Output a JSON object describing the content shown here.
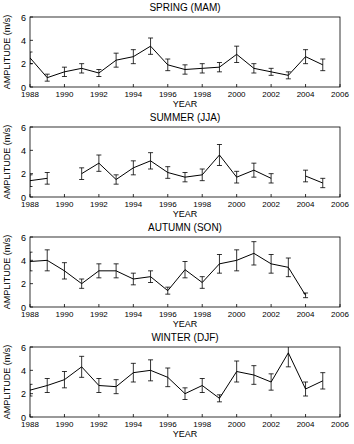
{
  "chart_data": [
    {
      "type": "line",
      "title": "SPRING (MAM)",
      "x_label": "YEAR",
      "y_label": "AMPLITUDE (m/s)",
      "color": "#000000",
      "marker": "none",
      "x": [
        1988,
        1989,
        1990,
        1991,
        1992,
        1993,
        1994,
        1995,
        1996,
        1997,
        1998,
        1999,
        2000,
        2001,
        2002,
        2003,
        2004,
        2005
      ],
      "values": [
        2.5,
        0.8,
        1.3,
        1.6,
        1.2,
        2.3,
        2.6,
        3.5,
        1.9,
        1.5,
        1.6,
        1.7,
        2.8,
        1.6,
        1.3,
        1.0,
        2.6,
        1.9
      ],
      "errors": [
        0.5,
        0.3,
        0.4,
        0.4,
        0.3,
        0.6,
        0.6,
        0.7,
        0.5,
        0.4,
        0.4,
        0.4,
        0.7,
        0.4,
        0.3,
        0.3,
        0.6,
        0.5
      ],
      "xlim": [
        1988,
        2006
      ],
      "xticks": [
        1988,
        1990,
        1992,
        1994,
        1996,
        1998,
        2000,
        2002,
        2004,
        2006
      ],
      "ylim": [
        0,
        6
      ],
      "yticks": [
        0,
        2,
        4,
        6
      ]
    },
    {
      "type": "line",
      "title": "SUMMER (JJA)",
      "x_label": "YEAR",
      "y_label": "AMPLITUDE (m/s)",
      "color": "#000000",
      "marker": "none",
      "x": [
        1988,
        1989,
        1990,
        1991,
        1992,
        1993,
        1994,
        1995,
        1996,
        1997,
        1998,
        1999,
        2000,
        2001,
        2002,
        2003,
        2004,
        2005
      ],
      "values": [
        1.4,
        1.6,
        null,
        2.0,
        2.9,
        1.5,
        2.5,
        3.1,
        2.1,
        1.7,
        1.9,
        3.6,
        1.7,
        2.3,
        1.6,
        null,
        1.8,
        1.2
      ],
      "errors": [
        0.5,
        0.5,
        null,
        0.5,
        0.7,
        0.4,
        0.6,
        0.7,
        0.5,
        0.4,
        0.5,
        0.9,
        0.5,
        0.6,
        0.4,
        null,
        0.5,
        0.4
      ],
      "xlim": [
        1988,
        2006
      ],
      "xticks": [
        1988,
        1990,
        1992,
        1994,
        1996,
        1998,
        2000,
        2002,
        2004,
        2006
      ],
      "ylim": [
        0,
        6
      ],
      "yticks": [
        0,
        2,
        4,
        6
      ]
    },
    {
      "type": "line",
      "title": "AUTUMN (SON)",
      "x_label": "YEAR",
      "y_label": "AMPLITUDE (m/s)",
      "color": "#000000",
      "marker": "none",
      "x": [
        1988,
        1989,
        1990,
        1991,
        1992,
        1993,
        1994,
        1995,
        1996,
        1997,
        1998,
        1999,
        2000,
        2001,
        2002,
        2003,
        2004
      ],
      "values": [
        3.9,
        4.0,
        3.1,
        2.0,
        3.1,
        3.1,
        2.4,
        2.6,
        1.4,
        3.2,
        2.1,
        3.7,
        4.0,
        4.6,
        3.7,
        3.4,
        1.0
      ],
      "errors": [
        0.8,
        0.9,
        0.7,
        0.4,
        0.6,
        0.6,
        0.5,
        0.5,
        0.3,
        0.7,
        0.5,
        0.8,
        0.9,
        1.0,
        0.8,
        0.8,
        0.2
      ],
      "xlim": [
        1988,
        2006
      ],
      "xticks": [
        1988,
        1990,
        1992,
        1994,
        1996,
        1998,
        2000,
        2002,
        2004,
        2006
      ],
      "ylim": [
        0,
        6
      ],
      "yticks": [
        0,
        2,
        4,
        6
      ]
    },
    {
      "type": "line",
      "title": "WINTER (DJF)",
      "x_label": "YEAR",
      "y_label": "AMPLITUDE (m/s)",
      "color": "#000000",
      "marker": "none",
      "x": [
        1988,
        1989,
        1990,
        1991,
        1992,
        1993,
        1994,
        1995,
        1996,
        1997,
        1998,
        1999,
        2000,
        2001,
        2002,
        2003,
        2004,
        2005
      ],
      "values": [
        2.3,
        2.7,
        3.2,
        4.3,
        2.7,
        2.6,
        3.8,
        4.0,
        3.4,
        2.0,
        2.7,
        1.6,
        3.9,
        3.6,
        3.0,
        5.5,
        2.4,
        3.1
      ],
      "errors": [
        0.5,
        0.6,
        0.7,
        0.9,
        0.6,
        0.6,
        0.8,
        0.9,
        0.8,
        0.5,
        0.6,
        0.3,
        0.9,
        0.8,
        0.7,
        1.2,
        0.6,
        0.7
      ],
      "xlim": [
        1988,
        2006
      ],
      "xticks": [
        1988,
        1990,
        1992,
        1994,
        1996,
        1998,
        2000,
        2002,
        2004,
        2006
      ],
      "ylim": [
        0,
        6
      ],
      "yticks": [
        0,
        2,
        4,
        6
      ]
    }
  ]
}
